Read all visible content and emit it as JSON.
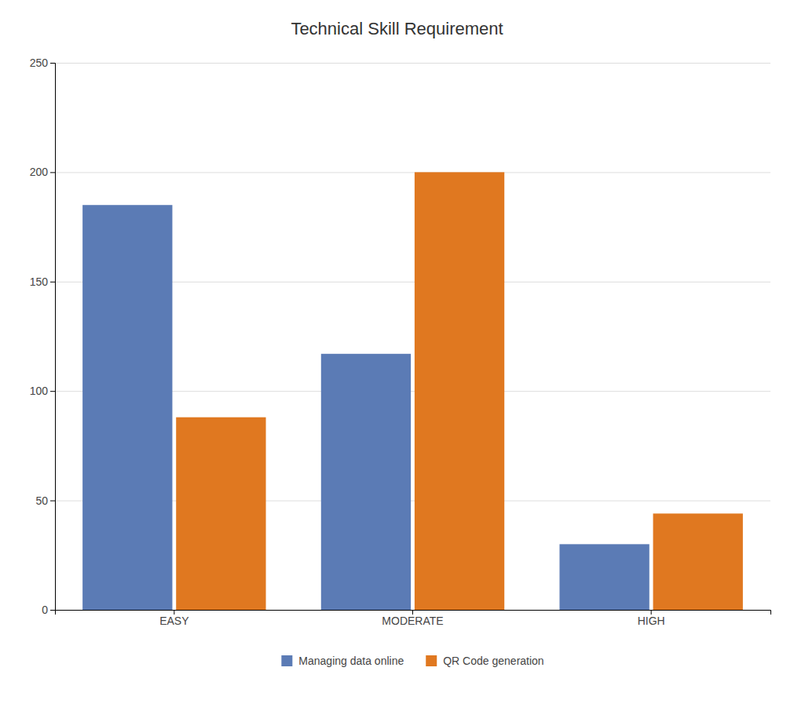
{
  "chart_data": {
    "type": "bar",
    "title": "Technical Skill Requirement",
    "categories": [
      "EASY",
      "MODERATE",
      "HIGH"
    ],
    "series": [
      {
        "name": "Managing data online",
        "color": "#5B7BB5",
        "values": [
          185,
          117,
          30
        ]
      },
      {
        "name": "QR Code generation",
        "color": "#E07820",
        "values": [
          88,
          200,
          44
        ]
      }
    ],
    "ylim": [
      0,
      250
    ],
    "yticks": [
      0,
      50,
      100,
      150,
      200,
      250
    ],
    "grid": true,
    "legend": "bottom"
  }
}
